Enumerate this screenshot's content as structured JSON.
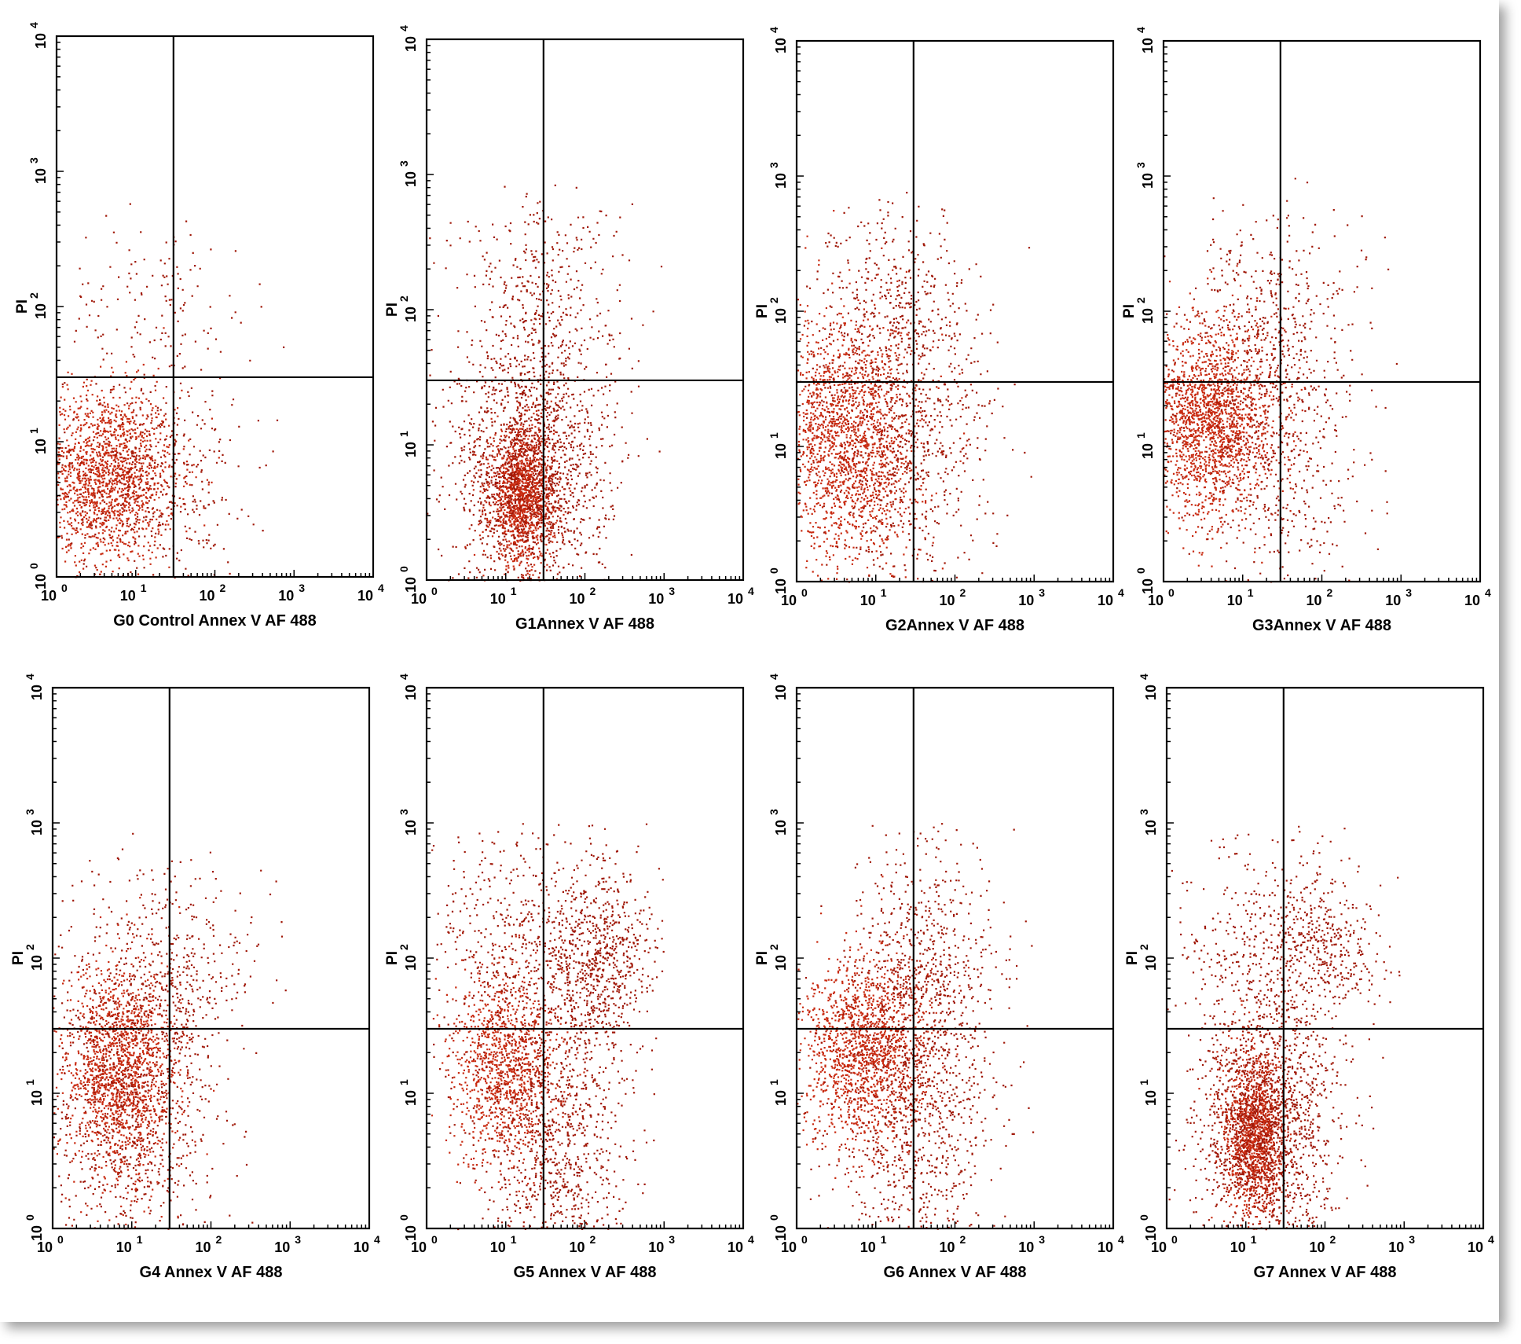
{
  "figure": {
    "description_free": true
  },
  "colors": {
    "dots": "#a01808",
    "dense": "#c82a10",
    "axis": "#000000"
  },
  "chart_data": [
    {
      "type": "scatter",
      "xlabel": "G0 Control Annex V AF 488",
      "ylabel": "PI",
      "xscale": "log",
      "yscale": "log",
      "xlim": [
        1,
        10000
      ],
      "ylim": [
        1,
        10000
      ],
      "gate": {
        "x": 30,
        "y": 30
      },
      "x_ticks": [
        "10",
        "10",
        "10",
        "10",
        "10"
      ],
      "x_exps": [
        "0",
        "1",
        "2",
        "3",
        "4"
      ],
      "y_ticks": [
        "10",
        "10",
        "10",
        "10",
        "10"
      ],
      "y_exps": [
        "0",
        "1",
        "2",
        "3",
        "4"
      ],
      "populations": [
        {
          "cx": 0.6,
          "cy": 0.75,
          "sx": 0.45,
          "sy": 0.32,
          "n": 1700
        },
        {
          "cx": 1.2,
          "cy": 0.7,
          "sx": 0.55,
          "sy": 0.4,
          "n": 450
        },
        {
          "cx": 1.3,
          "cy": 2.0,
          "sx": 0.6,
          "sy": 0.35,
          "n": 150
        }
      ]
    },
    {
      "type": "scatter",
      "xlabel": "G1Annex V AF 488",
      "ylabel": "PI",
      "xscale": "log",
      "yscale": "log",
      "xlim": [
        1,
        10000
      ],
      "ylim": [
        1,
        10000
      ],
      "gate": {
        "x": 30,
        "y": 30
      },
      "x_ticks": [
        "10",
        "10",
        "10",
        "10",
        "10"
      ],
      "x_exps": [
        "0",
        "1",
        "2",
        "3",
        "4"
      ],
      "y_ticks": [
        "10",
        "10",
        "10",
        "10",
        "10"
      ],
      "y_exps": [
        "0",
        "1",
        "2",
        "3",
        "4"
      ],
      "populations": [
        {
          "cx": 1.2,
          "cy": 0.62,
          "sx": 0.2,
          "sy": 0.25,
          "n": 1400
        },
        {
          "cx": 1.3,
          "cy": 0.8,
          "sx": 0.5,
          "sy": 0.45,
          "n": 1500
        },
        {
          "cx": 1.4,
          "cy": 2.0,
          "sx": 0.55,
          "sy": 0.45,
          "n": 500
        }
      ]
    },
    {
      "type": "scatter",
      "xlabel": "G2Annex V AF 488",
      "ylabel": "PI",
      "xscale": "log",
      "yscale": "log",
      "xlim": [
        1,
        10000
      ],
      "ylim": [
        1,
        10000
      ],
      "gate": {
        "x": 30,
        "y": 30
      },
      "x_ticks": [
        "10",
        "10",
        "10",
        "10",
        "10"
      ],
      "x_exps": [
        "0",
        "1",
        "2",
        "3",
        "4"
      ],
      "y_ticks": [
        "10",
        "10",
        "10",
        "10",
        "10"
      ],
      "y_exps": [
        "0",
        "1",
        "2",
        "3",
        "4"
      ],
      "populations": [
        {
          "cx": 0.65,
          "cy": 1.05,
          "sx": 0.45,
          "sy": 0.45,
          "n": 1900
        },
        {
          "cx": 1.4,
          "cy": 1.0,
          "sx": 0.55,
          "sy": 0.6,
          "n": 700
        },
        {
          "cx": 1.2,
          "cy": 2.0,
          "sx": 0.55,
          "sy": 0.4,
          "n": 400
        }
      ]
    },
    {
      "type": "scatter",
      "xlabel": "G3Annex V AF 488",
      "ylabel": "PI",
      "xscale": "log",
      "yscale": "log",
      "xlim": [
        1,
        10000
      ],
      "ylim": [
        1,
        10000
      ],
      "gate": {
        "x": 30,
        "y": 30
      },
      "x_ticks": [
        "10",
        "10",
        "10",
        "10",
        "10"
      ],
      "x_exps": [
        "0",
        "1",
        "2",
        "3",
        "4"
      ],
      "y_ticks": [
        "10",
        "10",
        "10",
        "10",
        "10"
      ],
      "y_exps": [
        "0",
        "1",
        "2",
        "3",
        "4"
      ],
      "populations": [
        {
          "cx": 0.6,
          "cy": 1.2,
          "sx": 0.4,
          "sy": 0.35,
          "n": 1900
        },
        {
          "cx": 1.4,
          "cy": 1.0,
          "sx": 0.55,
          "sy": 0.55,
          "n": 600
        },
        {
          "cx": 1.3,
          "cy": 2.0,
          "sx": 0.55,
          "sy": 0.4,
          "n": 350
        }
      ]
    },
    {
      "type": "scatter",
      "xlabel": "G4  Annex V AF 488",
      "ylabel": "PI",
      "xscale": "log",
      "yscale": "log",
      "xlim": [
        1,
        10000
      ],
      "ylim": [
        1,
        10000
      ],
      "gate": {
        "x": 30,
        "y": 30
      },
      "x_ticks": [
        "10",
        "10",
        "10",
        "10",
        "10"
      ],
      "x_exps": [
        "0",
        "1",
        "2",
        "3",
        "4"
      ],
      "y_ticks": [
        "10",
        "10",
        "10",
        "10",
        "10"
      ],
      "y_exps": [
        "0",
        "1",
        "2",
        "3",
        "4"
      ],
      "populations": [
        {
          "cx": 0.85,
          "cy": 1.15,
          "sx": 0.35,
          "sy": 0.4,
          "n": 1600
        },
        {
          "cx": 1.0,
          "cy": 0.9,
          "sx": 0.55,
          "sy": 0.6,
          "n": 900
        },
        {
          "cx": 1.5,
          "cy": 1.9,
          "sx": 0.5,
          "sy": 0.4,
          "n": 400
        }
      ]
    },
    {
      "type": "scatter",
      "xlabel": "G5  Annex V AF 488",
      "ylabel": "PI",
      "xscale": "log",
      "yscale": "log",
      "xlim": [
        1,
        10000
      ],
      "ylim": [
        1,
        10000
      ],
      "gate": {
        "x": 30,
        "y": 30
      },
      "x_ticks": [
        "10",
        "10",
        "10",
        "10",
        "10"
      ],
      "x_exps": [
        "0",
        "1",
        "2",
        "3",
        "4"
      ],
      "y_ticks": [
        "10",
        "10",
        "10",
        "10",
        "10"
      ],
      "y_exps": [
        "0",
        "1",
        "2",
        "3",
        "4"
      ],
      "populations": [
        {
          "cx": 1.0,
          "cy": 1.2,
          "sx": 0.35,
          "sy": 0.35,
          "n": 1100
        },
        {
          "cx": 1.6,
          "cy": 0.6,
          "sx": 0.45,
          "sy": 0.5,
          "n": 900
        },
        {
          "cx": 2.15,
          "cy": 2.0,
          "sx": 0.35,
          "sy": 0.35,
          "n": 700
        },
        {
          "cx": 1.2,
          "cy": 2.0,
          "sx": 0.6,
          "sy": 0.55,
          "n": 600
        }
      ]
    },
    {
      "type": "scatter",
      "xlabel": "G6 Annex V AF 488",
      "ylabel": "PI",
      "xscale": "log",
      "yscale": "log",
      "xlim": [
        1,
        10000
      ],
      "ylim": [
        1,
        10000
      ],
      "gate": {
        "x": 30,
        "y": 30
      },
      "x_ticks": [
        "10",
        "10",
        "10",
        "10",
        "10"
      ],
      "x_exps": [
        "0",
        "1",
        "2",
        "3",
        "4"
      ],
      "y_ticks": [
        "10",
        "10",
        "10",
        "10",
        "10"
      ],
      "y_exps": [
        "0",
        "1",
        "2",
        "3",
        "4"
      ],
      "populations": [
        {
          "cx": 0.85,
          "cy": 1.3,
          "sx": 0.4,
          "sy": 0.35,
          "n": 1500
        },
        {
          "cx": 1.5,
          "cy": 0.8,
          "sx": 0.5,
          "sy": 0.6,
          "n": 900
        },
        {
          "cx": 1.6,
          "cy": 2.0,
          "sx": 0.5,
          "sy": 0.45,
          "n": 600
        }
      ]
    },
    {
      "type": "scatter",
      "xlabel": "G7 Annex V AF 488",
      "ylabel": "PI",
      "xscale": "log",
      "yscale": "log",
      "xlim": [
        1,
        10000
      ],
      "ylim": [
        1,
        10000
      ],
      "gate": {
        "x": 30,
        "y": 30
      },
      "x_ticks": [
        "10",
        "10",
        "10",
        "10",
        "10"
      ],
      "x_exps": [
        "0",
        "1",
        "2",
        "3",
        "4"
      ],
      "y_ticks": [
        "10",
        "10",
        "10",
        "10",
        "10"
      ],
      "y_exps": [
        "0",
        "1",
        "2",
        "3",
        "4"
      ],
      "populations": [
        {
          "cx": 1.1,
          "cy": 0.7,
          "sx": 0.18,
          "sy": 0.3,
          "n": 1300
        },
        {
          "cx": 1.25,
          "cy": 0.75,
          "sx": 0.45,
          "sy": 0.45,
          "n": 1500
        },
        {
          "cx": 2.0,
          "cy": 2.1,
          "sx": 0.3,
          "sy": 0.25,
          "n": 300
        },
        {
          "cx": 1.3,
          "cy": 2.0,
          "sx": 0.55,
          "sy": 0.45,
          "n": 500
        }
      ]
    }
  ]
}
